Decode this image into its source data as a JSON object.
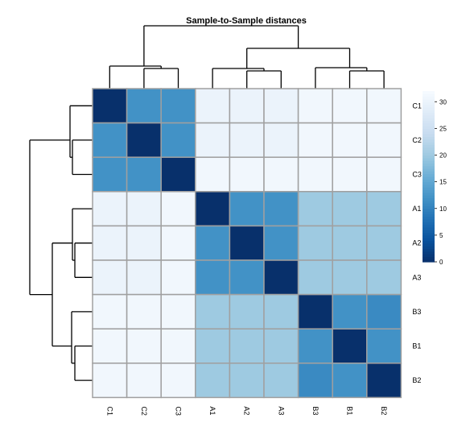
{
  "chart_data": {
    "type": "heatmap",
    "title": "Sample-to-Sample distances",
    "row_labels": [
      "C1",
      "C2",
      "C3",
      "A1",
      "A2",
      "A3",
      "B3",
      "B1",
      "B2"
    ],
    "col_labels": [
      "C1",
      "C2",
      "C3",
      "A1",
      "A2",
      "A3",
      "B3",
      "B1",
      "B2"
    ],
    "values": [
      [
        0,
        12,
        12,
        30,
        30,
        30,
        31,
        31,
        31
      ],
      [
        12,
        0,
        12,
        30,
        30,
        30,
        31,
        31,
        31
      ],
      [
        12,
        12,
        0,
        31,
        31,
        31,
        31,
        31,
        31
      ],
      [
        30,
        30,
        31,
        0,
        12,
        12,
        20,
        20,
        20
      ],
      [
        30,
        30,
        31,
        12,
        0,
        12,
        20,
        20,
        20
      ],
      [
        30,
        30,
        31,
        12,
        12,
        0,
        20,
        20,
        20
      ],
      [
        31,
        31,
        31,
        20,
        20,
        20,
        0,
        12,
        11
      ],
      [
        31,
        31,
        31,
        20,
        20,
        20,
        12,
        0,
        12
      ],
      [
        31,
        31,
        31,
        20,
        20,
        20,
        11,
        12,
        0
      ]
    ],
    "colorbar": {
      "ticks": [
        0,
        5,
        10,
        15,
        20,
        25,
        30
      ],
      "range": [
        0,
        32
      ],
      "low_color": "#08306b",
      "high_color": "#f7fbff"
    },
    "grid_color": "#a0a0a0",
    "dendrograms": [
      "top",
      "left"
    ],
    "legend": "right"
  }
}
